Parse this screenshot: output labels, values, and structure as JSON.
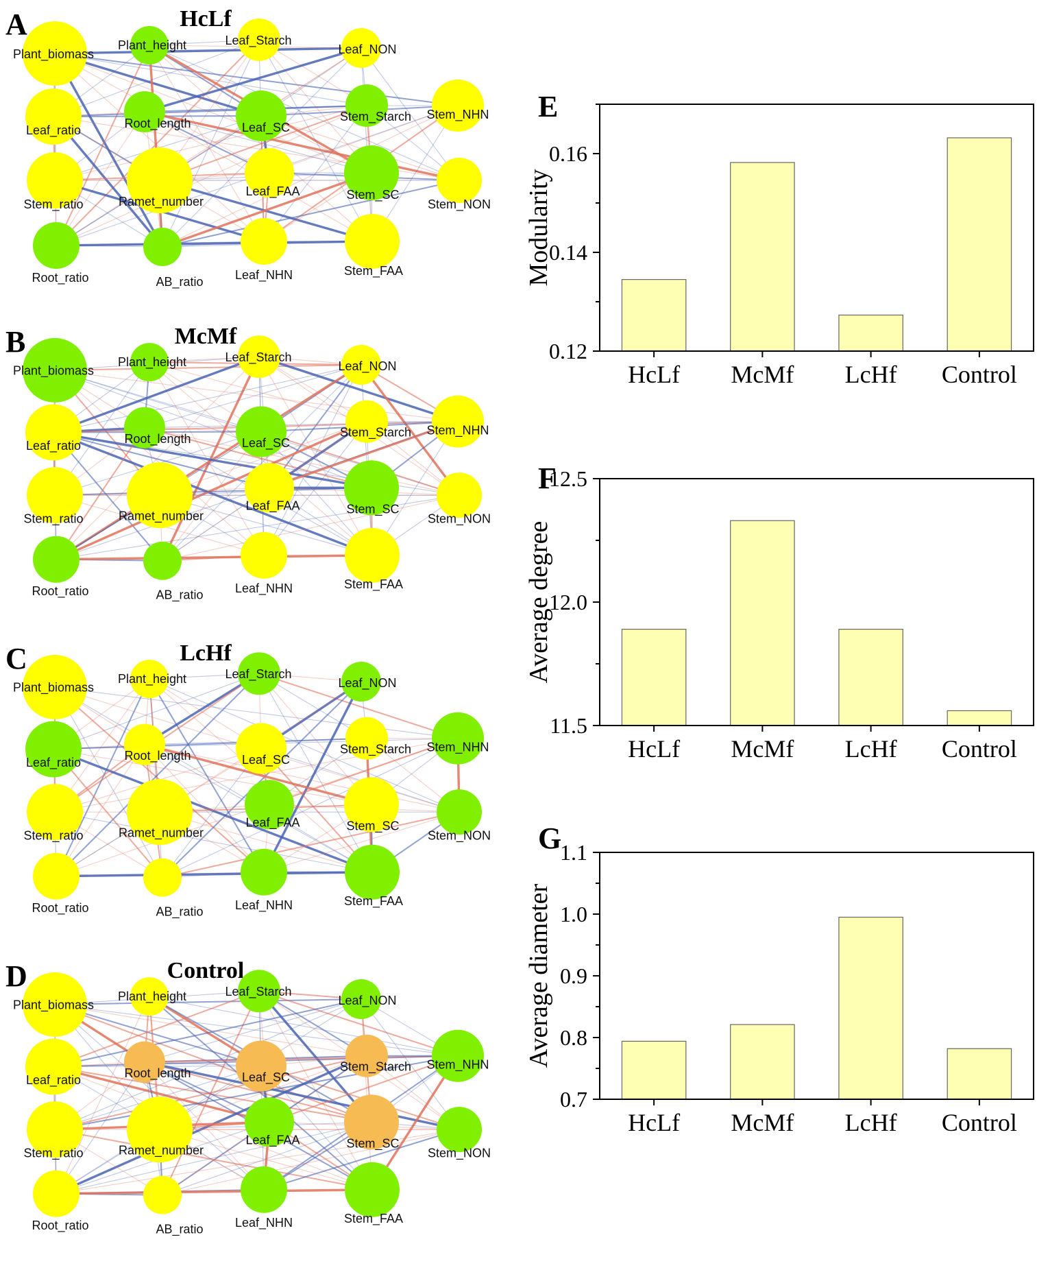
{
  "colors": {
    "yellow_node": "#ffff00",
    "green_node": "#80f000",
    "orange_node": "#f7bb53",
    "bar_fill": "#ffffb4",
    "bar_stroke": "#666666",
    "positive_edge": "#e2725b",
    "negative_edge": "#4a64b4"
  },
  "node_names": [
    "Plant_biomass",
    "Plant_height",
    "Leaf_Starch",
    "Leaf_NON",
    "Leaf_ratio",
    "Root_length",
    "Leaf_SC",
    "Stem_Starch",
    "Stem_NHN",
    "Stem_ratio",
    "Ramet_number",
    "Leaf_FAA",
    "Stem_SC",
    "Stem_NON",
    "Root_ratio",
    "AB_ratio",
    "Leaf_NHN",
    "Stem_FAA"
  ],
  "networks": [
    {
      "letter": "A",
      "title": "HcLf",
      "node_colors": [
        "yellow",
        "green",
        "yellow",
        "yellow",
        "yellow",
        "green",
        "green",
        "green",
        "yellow",
        "yellow",
        "yellow",
        "yellow",
        "green",
        "yellow",
        "green",
        "green",
        "yellow",
        "yellow"
      ]
    },
    {
      "letter": "B",
      "title": "McMf",
      "node_colors": [
        "green",
        "green",
        "yellow",
        "yellow",
        "yellow",
        "green",
        "green",
        "yellow",
        "yellow",
        "yellow",
        "yellow",
        "yellow",
        "green",
        "yellow",
        "green",
        "green",
        "yellow",
        "yellow"
      ]
    },
    {
      "letter": "C",
      "title": "LcHf",
      "node_colors": [
        "yellow",
        "yellow",
        "green",
        "green",
        "green",
        "yellow",
        "yellow",
        "yellow",
        "green",
        "yellow",
        "yellow",
        "green",
        "yellow",
        "green",
        "yellow",
        "yellow",
        "green",
        "green"
      ]
    },
    {
      "letter": "D",
      "title": "Control",
      "node_colors": [
        "yellow",
        "yellow",
        "green",
        "green",
        "yellow",
        "orange",
        "orange",
        "orange",
        "green",
        "yellow",
        "yellow",
        "green",
        "orange",
        "green",
        "yellow",
        "yellow",
        "green",
        "green"
      ]
    }
  ],
  "chart_data": [
    {
      "letter": "E",
      "type": "bar",
      "categories": [
        "HcLf",
        "McMf",
        "LcHf",
        "Control"
      ],
      "values": [
        0.1345,
        0.1582,
        0.1273,
        0.1632
      ],
      "ylabel": "Modularity",
      "ylim": [
        0.12,
        0.17
      ],
      "yticks": [
        "0.12",
        "0.14",
        "0.16"
      ],
      "ytick_values": [
        0.12,
        0.14,
        0.16
      ]
    },
    {
      "letter": "F",
      "type": "bar",
      "categories": [
        "HcLf",
        "McMf",
        "LcHf",
        "Control"
      ],
      "values": [
        11.89,
        12.33,
        11.89,
        11.56
      ],
      "ylabel": "Average degree",
      "ylim": [
        11.5,
        12.5
      ],
      "yticks": [
        "11.5",
        "12.0",
        "12.5"
      ],
      "ytick_values": [
        11.5,
        12.0,
        12.5
      ]
    },
    {
      "letter": "G",
      "type": "bar",
      "categories": [
        "HcLf",
        "McMf",
        "LcHf",
        "Control"
      ],
      "values": [
        0.794,
        0.821,
        0.995,
        0.782
      ],
      "ylabel": "Average diameter",
      "ylim": [
        0.7,
        1.1
      ],
      "yticks": [
        "0.7",
        "0.8",
        "0.9",
        "1.0",
        "1.1"
      ],
      "ytick_values": [
        0.7,
        0.8,
        0.9,
        1.0,
        1.1
      ]
    }
  ]
}
